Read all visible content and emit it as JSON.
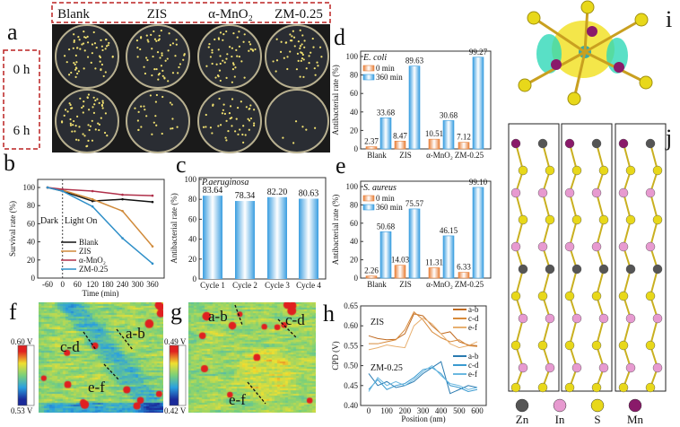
{
  "panel_labels": {
    "a": "a",
    "b": "b",
    "c": "c",
    "d": "d",
    "e": "e",
    "f": "f",
    "g": "g",
    "h": "h",
    "i": "i",
    "j": "j"
  },
  "panel_a": {
    "column_labels": [
      "Blank",
      "ZIS",
      "α-MnO₂",
      "ZM-0.25"
    ],
    "row_labels": [
      "0 h",
      "6 h"
    ]
  },
  "panel_f": {
    "colorbar_max": "0.60 V",
    "colorbar_min": "0.53 V",
    "line_labels": [
      "a-b",
      "c-d",
      "e-f"
    ]
  },
  "panel_g": {
    "colorbar_max": "0.49 V",
    "colorbar_min": "0.42 V",
    "line_labels": [
      "a-b",
      "c-d",
      "e-f"
    ]
  },
  "panel_j": {
    "legend": [
      {
        "label": "Zn",
        "color": "#555555"
      },
      {
        "label": "In",
        "color": "#e79ad0"
      },
      {
        "label": "S",
        "color": "#e8d81a"
      },
      {
        "label": "Mn",
        "color": "#8a1a6a"
      }
    ]
  },
  "chart_data": [
    {
      "id": "b",
      "type": "line",
      "xlabel": "Time (min)",
      "ylabel": "Survival rate (%)",
      "xticks": [
        -60,
        0,
        60,
        120,
        180,
        240,
        300,
        360
      ],
      "yticks": [
        0,
        20,
        40,
        60,
        80,
        100
      ],
      "xlim": [
        -80,
        380
      ],
      "ylim": [
        0,
        108
      ],
      "annotations": [
        "Dark",
        "Light On"
      ],
      "x": [
        -60,
        0,
        120,
        240,
        360
      ],
      "legend_position": "bottom-center",
      "series": [
        {
          "name": "Blank",
          "color": "#111111",
          "values": [
            100,
            96,
            85,
            87,
            84
          ]
        },
        {
          "name": "ZIS",
          "color": "#d08a3a",
          "values": [
            100,
            97,
            87,
            74,
            35
          ]
        },
        {
          "name": "α-MnO₂",
          "color": "#b0304a",
          "values": [
            100,
            98,
            96,
            92,
            91
          ]
        },
        {
          "name": "ZM-0.25",
          "color": "#2f8fc8",
          "values": [
            100,
            96,
            79,
            44,
            16
          ]
        }
      ]
    },
    {
      "id": "c",
      "type": "bar",
      "title": "P.aeruginosa",
      "ylabel": "Antibacterial rate (%)",
      "categories": [
        "Cycle 1",
        "Cycle 2",
        "Cycle 3",
        "Cycle 4"
      ],
      "values": [
        83.64,
        78.34,
        82.2,
        80.63
      ],
      "value_labels": [
        "83.64",
        "78.34",
        "82.20",
        "80.63"
      ],
      "yticks": [
        0,
        20,
        40,
        60,
        80,
        100
      ],
      "ylim": [
        0,
        100
      ],
      "color": "#4aa8e0"
    },
    {
      "id": "d",
      "type": "bar",
      "title": "E. coli",
      "ylabel": "Antibacterial rate (%)",
      "categories": [
        "Blank",
        "ZIS",
        "α-MnO₂",
        "ZM-0.25"
      ],
      "yticks": [
        0,
        20,
        40,
        60,
        80,
        100
      ],
      "ylim": [
        0,
        100
      ],
      "legend_position": "top-left",
      "series": [
        {
          "name": "0 min",
          "color": "#e8803a",
          "values": [
            2.37,
            8.47,
            10.51,
            7.12
          ],
          "value_labels": [
            "2.37",
            "8.47",
            "10.51",
            "7.12"
          ]
        },
        {
          "name": "360 min",
          "color": "#3a9ee0",
          "values": [
            33.68,
            89.63,
            30.68,
            99.27
          ],
          "value_labels": [
            "33.68",
            "89.63",
            "30.68",
            "99.27"
          ]
        }
      ]
    },
    {
      "id": "e",
      "type": "bar",
      "title": "S. aureus",
      "ylabel": "Antibacterial rate (%)",
      "categories": [
        "Blank",
        "ZIS",
        "α-MnO₂",
        "ZM-0.25"
      ],
      "yticks": [
        0,
        20,
        40,
        60,
        80,
        100
      ],
      "ylim": [
        0,
        100
      ],
      "legend_position": "top-left",
      "series": [
        {
          "name": "0 min",
          "color": "#e8803a",
          "values": [
            2.26,
            14.03,
            11.31,
            6.33
          ],
          "value_labels": [
            "2.26",
            "14.03",
            "11.31",
            "6.33"
          ]
        },
        {
          "name": "360 min",
          "color": "#3a9ee0",
          "values": [
            50.68,
            75.57,
            46.15,
            99.1
          ],
          "value_labels": [
            "50.68",
            "75.57",
            "46.15",
            "99.10"
          ]
        }
      ]
    },
    {
      "id": "h",
      "type": "line",
      "xlabel": "Position (nm)",
      "ylabel": "CPD (V)",
      "xticks": [
        0,
        100,
        200,
        300,
        400,
        500,
        600
      ],
      "yticks": [
        "0.40",
        "0.45",
        "0.50",
        "0.55",
        "0.60",
        "0.65"
      ],
      "xlim": [
        -30,
        640
      ],
      "ylim": [
        0.4,
        0.65
      ],
      "group_labels": [
        "ZIS",
        "ZM-0.25"
      ],
      "x": [
        0,
        50,
        100,
        150,
        200,
        250,
        300,
        350,
        400,
        450,
        500,
        550,
        600
      ],
      "series": [
        {
          "name": "a-b",
          "group": "ZIS",
          "color": "#c06a20",
          "values": [
            0.575,
            0.568,
            0.565,
            0.566,
            0.58,
            0.63,
            0.625,
            0.6,
            0.58,
            0.585,
            0.56,
            0.552,
            0.55
          ]
        },
        {
          "name": "c-d",
          "group": "ZIS",
          "color": "#d88a3a",
          "values": [
            0.555,
            0.555,
            0.56,
            0.565,
            0.59,
            0.635,
            0.615,
            0.585,
            0.57,
            0.56,
            0.565,
            0.55,
            0.548
          ]
        },
        {
          "name": "e-f",
          "group": "ZIS",
          "color": "#e8b070",
          "values": [
            0.54,
            0.545,
            0.552,
            0.548,
            0.545,
            0.6,
            0.62,
            0.605,
            0.58,
            0.555,
            0.545,
            0.55,
            0.56
          ]
        },
        {
          "name": "a-b",
          "group": "ZM-0.25",
          "color": "#2a7ab0",
          "values": [
            0.48,
            0.45,
            0.46,
            0.445,
            0.45,
            0.46,
            0.48,
            0.495,
            0.51,
            0.43,
            0.44,
            0.45,
            0.445
          ]
        },
        {
          "name": "c-d",
          "group": "ZM-0.25",
          "color": "#3a9ad0",
          "values": [
            0.44,
            0.465,
            0.44,
            0.45,
            0.455,
            0.47,
            0.49,
            0.495,
            0.48,
            0.45,
            0.445,
            0.435,
            0.44
          ]
        },
        {
          "name": "e-f",
          "group": "ZM-0.25",
          "color": "#6ab8e0",
          "values": [
            0.435,
            0.47,
            0.45,
            0.46,
            0.45,
            0.465,
            0.485,
            0.5,
            0.475,
            0.455,
            0.45,
            0.44,
            0.445
          ]
        }
      ]
    }
  ]
}
